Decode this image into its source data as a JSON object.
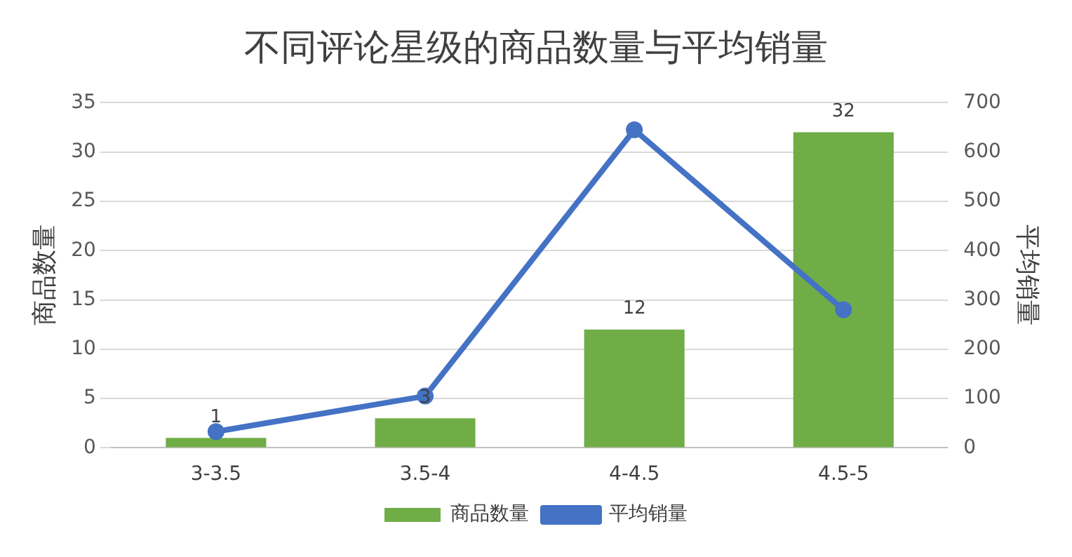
{
  "chart_data": {
    "type": "bar",
    "title": "不同评论星级的商品数量与平均销量",
    "ylabel": "商品数量",
    "y2label": "平均销量",
    "categories": [
      "3-3.5",
      "3.5-4",
      "4-4.5",
      "4.5-5"
    ],
    "series": [
      {
        "name": "商品数量",
        "color": "#70ad47",
        "values": [
          1,
          3,
          12,
          32
        ],
        "value_labels": [
          "1",
          "3",
          "12",
          "32"
        ]
      },
      {
        "name": "平均销量",
        "type": "line",
        "axis": "y2",
        "color": "#4472c4",
        "values": [
          33,
          105,
          645,
          280
        ]
      }
    ],
    "ylim": [
      0,
      35
    ],
    "yticks": [
      0,
      5,
      10,
      15,
      20,
      25,
      30,
      35
    ],
    "y2lim": [
      0,
      700
    ],
    "y2ticks": [
      0,
      100,
      200,
      300,
      400,
      500,
      600,
      700
    ],
    "grid": "y",
    "legend": "bottom",
    "marker": "circle"
  }
}
